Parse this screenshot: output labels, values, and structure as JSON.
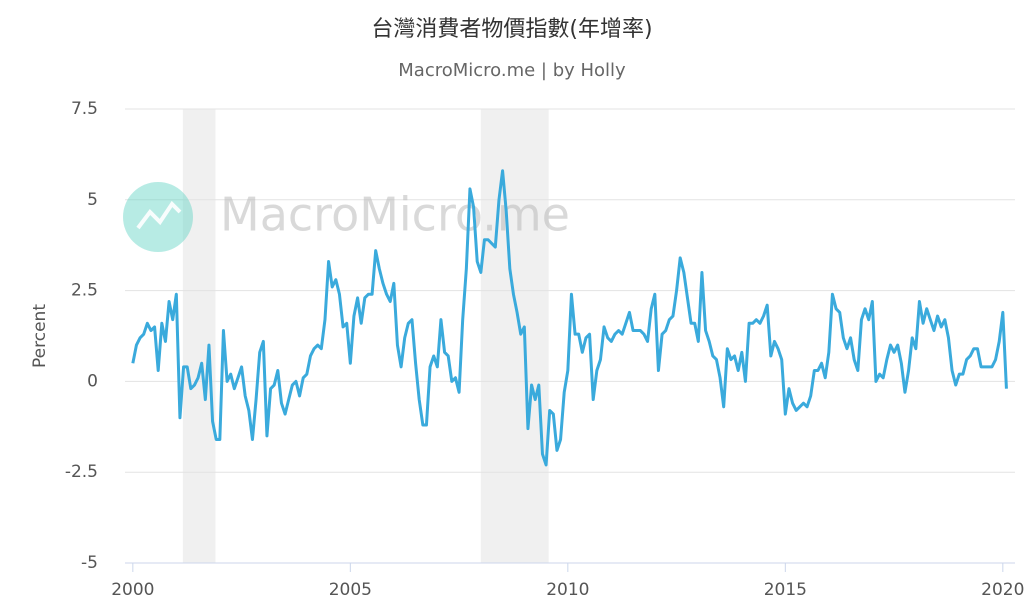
{
  "chart_data": {
    "type": "line",
    "title": "台灣消費者物價指數(年增率)",
    "subtitle": "MacroMicro.me | by Holly",
    "ylabel": "Percent",
    "watermark": "MacroMicro.me",
    "color": "#3aaadc",
    "grid": true,
    "xlim": [
      1999.82,
      2020.28
    ],
    "ylim": [
      -5,
      7.5
    ],
    "xticks": [
      2000,
      2005,
      2010,
      2015,
      2020
    ],
    "yticks": [
      7.5,
      5,
      2.5,
      0,
      -2.5,
      -5
    ],
    "shaded_periods": [
      [
        2001.15,
        2001.9
      ],
      [
        2008.0,
        2009.56
      ]
    ],
    "x": [
      2000,
      2000.083,
      2000.167,
      2000.25,
      2000.333,
      2000.417,
      2000.5,
      2000.583,
      2000.667,
      2000.75,
      2000.833,
      2000.917,
      2001,
      2001.083,
      2001.167,
      2001.25,
      2001.333,
      2001.417,
      2001.5,
      2001.583,
      2001.667,
      2001.75,
      2001.833,
      2001.917,
      2002,
      2002.083,
      2002.167,
      2002.25,
      2002.333,
      2002.417,
      2002.5,
      2002.583,
      2002.667,
      2002.75,
      2002.833,
      2002.917,
      2003,
      2003.083,
      2003.167,
      2003.25,
      2003.333,
      2003.417,
      2003.5,
      2003.583,
      2003.667,
      2003.75,
      2003.833,
      2003.917,
      2004,
      2004.083,
      2004.167,
      2004.25,
      2004.333,
      2004.417,
      2004.5,
      2004.583,
      2004.667,
      2004.75,
      2004.833,
      2004.917,
      2005,
      2005.083,
      2005.167,
      2005.25,
      2005.333,
      2005.417,
      2005.5,
      2005.583,
      2005.667,
      2005.75,
      2005.833,
      2005.917,
      2006,
      2006.083,
      2006.167,
      2006.25,
      2006.333,
      2006.417,
      2006.5,
      2006.583,
      2006.667,
      2006.75,
      2006.833,
      2006.917,
      2007,
      2007.083,
      2007.167,
      2007.25,
      2007.333,
      2007.417,
      2007.5,
      2007.583,
      2007.667,
      2007.75,
      2007.833,
      2007.917,
      2008,
      2008.083,
      2008.167,
      2008.25,
      2008.333,
      2008.417,
      2008.5,
      2008.583,
      2008.667,
      2008.75,
      2008.833,
      2008.917,
      2009,
      2009.083,
      2009.167,
      2009.25,
      2009.333,
      2009.417,
      2009.5,
      2009.583,
      2009.667,
      2009.75,
      2009.833,
      2009.917,
      2010,
      2010.083,
      2010.167,
      2010.25,
      2010.333,
      2010.417,
      2010.5,
      2010.583,
      2010.667,
      2010.75,
      2010.833,
      2010.917,
      2011,
      2011.083,
      2011.167,
      2011.25,
      2011.333,
      2011.417,
      2011.5,
      2011.583,
      2011.667,
      2011.75,
      2011.833,
      2011.917,
      2012,
      2012.083,
      2012.167,
      2012.25,
      2012.333,
      2012.417,
      2012.5,
      2012.583,
      2012.667,
      2012.75,
      2012.833,
      2012.917,
      2013,
      2013.083,
      2013.167,
      2013.25,
      2013.333,
      2013.417,
      2013.5,
      2013.583,
      2013.667,
      2013.75,
      2013.833,
      2013.917,
      2014,
      2014.083,
      2014.167,
      2014.25,
      2014.333,
      2014.417,
      2014.5,
      2014.583,
      2014.667,
      2014.75,
      2014.833,
      2014.917,
      2015,
      2015.083,
      2015.167,
      2015.25,
      2015.333,
      2015.417,
      2015.5,
      2015.583,
      2015.667,
      2015.75,
      2015.833,
      2015.917,
      2016,
      2016.083,
      2016.167,
      2016.25,
      2016.333,
      2016.417,
      2016.5,
      2016.583,
      2016.667,
      2016.75,
      2016.833,
      2016.917,
      2017,
      2017.083,
      2017.167,
      2017.25,
      2017.333,
      2017.417,
      2017.5,
      2017.583,
      2017.667,
      2017.75,
      2017.833,
      2017.917,
      2018,
      2018.083,
      2018.167,
      2018.25,
      2018.333,
      2018.417,
      2018.5,
      2018.583,
      2018.667,
      2018.75,
      2018.833,
      2018.917,
      2019,
      2019.083,
      2019.167,
      2019.25,
      2019.333,
      2019.417,
      2019.5,
      2019.583,
      2019.667,
      2019.75,
      2019.833,
      2019.917,
      2020,
      2020.083
    ],
    "values": [
      0.5,
      1.0,
      1.2,
      1.3,
      1.6,
      1.4,
      1.5,
      0.3,
      1.6,
      1.1,
      2.2,
      1.7,
      2.4,
      -1.0,
      0.4,
      0.4,
      -0.2,
      -0.1,
      0.1,
      0.5,
      -0.5,
      1.0,
      -1.1,
      -1.6,
      -1.6,
      1.4,
      0.0,
      0.2,
      -0.2,
      0.1,
      0.4,
      -0.4,
      -0.8,
      -1.6,
      -0.5,
      0.8,
      1.1,
      -1.5,
      -0.2,
      -0.1,
      0.3,
      -0.6,
      -0.9,
      -0.5,
      -0.1,
      0.0,
      -0.4,
      0.1,
      0.2,
      0.7,
      0.9,
      1.0,
      0.9,
      1.7,
      3.3,
      2.6,
      2.8,
      2.4,
      1.5,
      1.6,
      0.5,
      1.8,
      2.3,
      1.6,
      2.3,
      2.4,
      2.4,
      3.6,
      3.1,
      2.7,
      2.4,
      2.2,
      2.7,
      1.0,
      0.4,
      1.2,
      1.6,
      1.7,
      0.5,
      -0.5,
      -1.2,
      -1.2,
      0.4,
      0.7,
      0.4,
      1.7,
      0.8,
      0.7,
      0.0,
      0.1,
      -0.3,
      1.7,
      3.1,
      5.3,
      4.8,
      3.3,
      3.0,
      3.9,
      3.9,
      3.8,
      3.7,
      5.0,
      5.8,
      4.7,
      3.1,
      2.4,
      1.9,
      1.3,
      1.5,
      -1.3,
      -0.1,
      -0.5,
      -0.1,
      -2.0,
      -2.3,
      -0.8,
      -0.9,
      -1.9,
      -1.6,
      -0.3,
      0.3,
      2.4,
      1.3,
      1.3,
      0.8,
      1.2,
      1.3,
      -0.5,
      0.3,
      0.6,
      1.5,
      1.2,
      1.1,
      1.3,
      1.4,
      1.3,
      1.6,
      1.9,
      1.4,
      1.4,
      1.4,
      1.3,
      1.1,
      2.0,
      2.4,
      0.3,
      1.3,
      1.4,
      1.7,
      1.8,
      2.5,
      3.4,
      3.0,
      2.3,
      1.6,
      1.6,
      1.1,
      3.0,
      1.4,
      1.1,
      0.7,
      0.6,
      0.1,
      -0.7,
      0.9,
      0.6,
      0.7,
      0.3,
      0.8,
      0.0,
      1.6,
      1.6,
      1.7,
      1.6,
      1.8,
      2.1,
      0.7,
      1.1,
      0.9,
      0.6,
      -0.9,
      -0.2,
      -0.6,
      -0.8,
      -0.7,
      -0.6,
      -0.7,
      -0.4,
      0.3,
      0.3,
      0.5,
      0.1,
      0.8,
      2.4,
      2.0,
      1.9,
      1.2,
      0.9,
      1.2,
      0.6,
      0.3,
      1.7,
      2.0,
      1.7,
      2.2,
      0.0,
      0.2,
      0.1,
      0.6,
      1.0,
      0.8,
      1.0,
      0.5,
      -0.3,
      0.3,
      1.2,
      0.9,
      2.2,
      1.6,
      2.0,
      1.7,
      1.4,
      1.8,
      1.5,
      1.7,
      1.2,
      0.3,
      -0.1,
      0.2,
      0.2,
      0.6,
      0.7,
      0.9,
      0.9,
      0.4,
      0.4,
      0.4,
      0.4,
      0.6,
      1.1,
      1.9,
      -0.2
    ]
  }
}
